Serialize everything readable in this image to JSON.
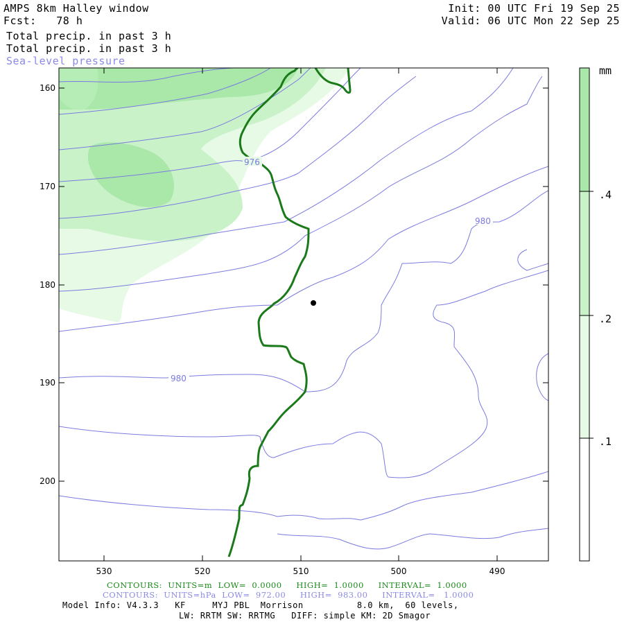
{
  "header": {
    "model_title": "AMPS 8km Halley window",
    "forecast_hour": "Fcst:   78 h",
    "init_time": "Init: 00 UTC Fri 19 Sep 25",
    "valid_time": "Valid: 06 UTC Mon 22 Sep 25",
    "field_1": "Total precip. in past 3 h",
    "field_2": "Total precip. in past 3 h",
    "field_3": "Sea-level pressure"
  },
  "axes": {
    "y_ticks": [
      "160",
      "170",
      "180",
      "190",
      "200"
    ],
    "x_ticks": [
      "530",
      "520",
      "510",
      "500",
      "490"
    ]
  },
  "contour_labels": [
    "976",
    "980",
    "980"
  ],
  "colorbar": {
    "unit": "mm",
    "ticks": [
      ".4",
      ".2",
      ".1"
    ],
    "colors": [
      "#a9e8a9",
      "#c9f2c9",
      "#e6fae6",
      "#ffffff"
    ]
  },
  "footer": {
    "terrain_contours": "CONTOURS:  UNITS=m  LOW=  0.0000     HIGH=  1.0000     INTERVAL=  1.0000",
    "pressure_contours": "CONTOURS:  UNITS=hPa  LOW=  972.00     HIGH=  983.00     INTERVAL=   1.0000",
    "model_info": "Model Info: V4.3.3   KF     MYJ PBL  Morrison          8.0 km,  60 levels,",
    "physics_info": "LW: RRTM SW: RRTMG   DIFF: simple KM: 2D Smagor"
  },
  "map": {
    "coastline_color": "#1a7a1a",
    "isobar_color": "#7a7ae0",
    "station_marker": "black-dot"
  }
}
